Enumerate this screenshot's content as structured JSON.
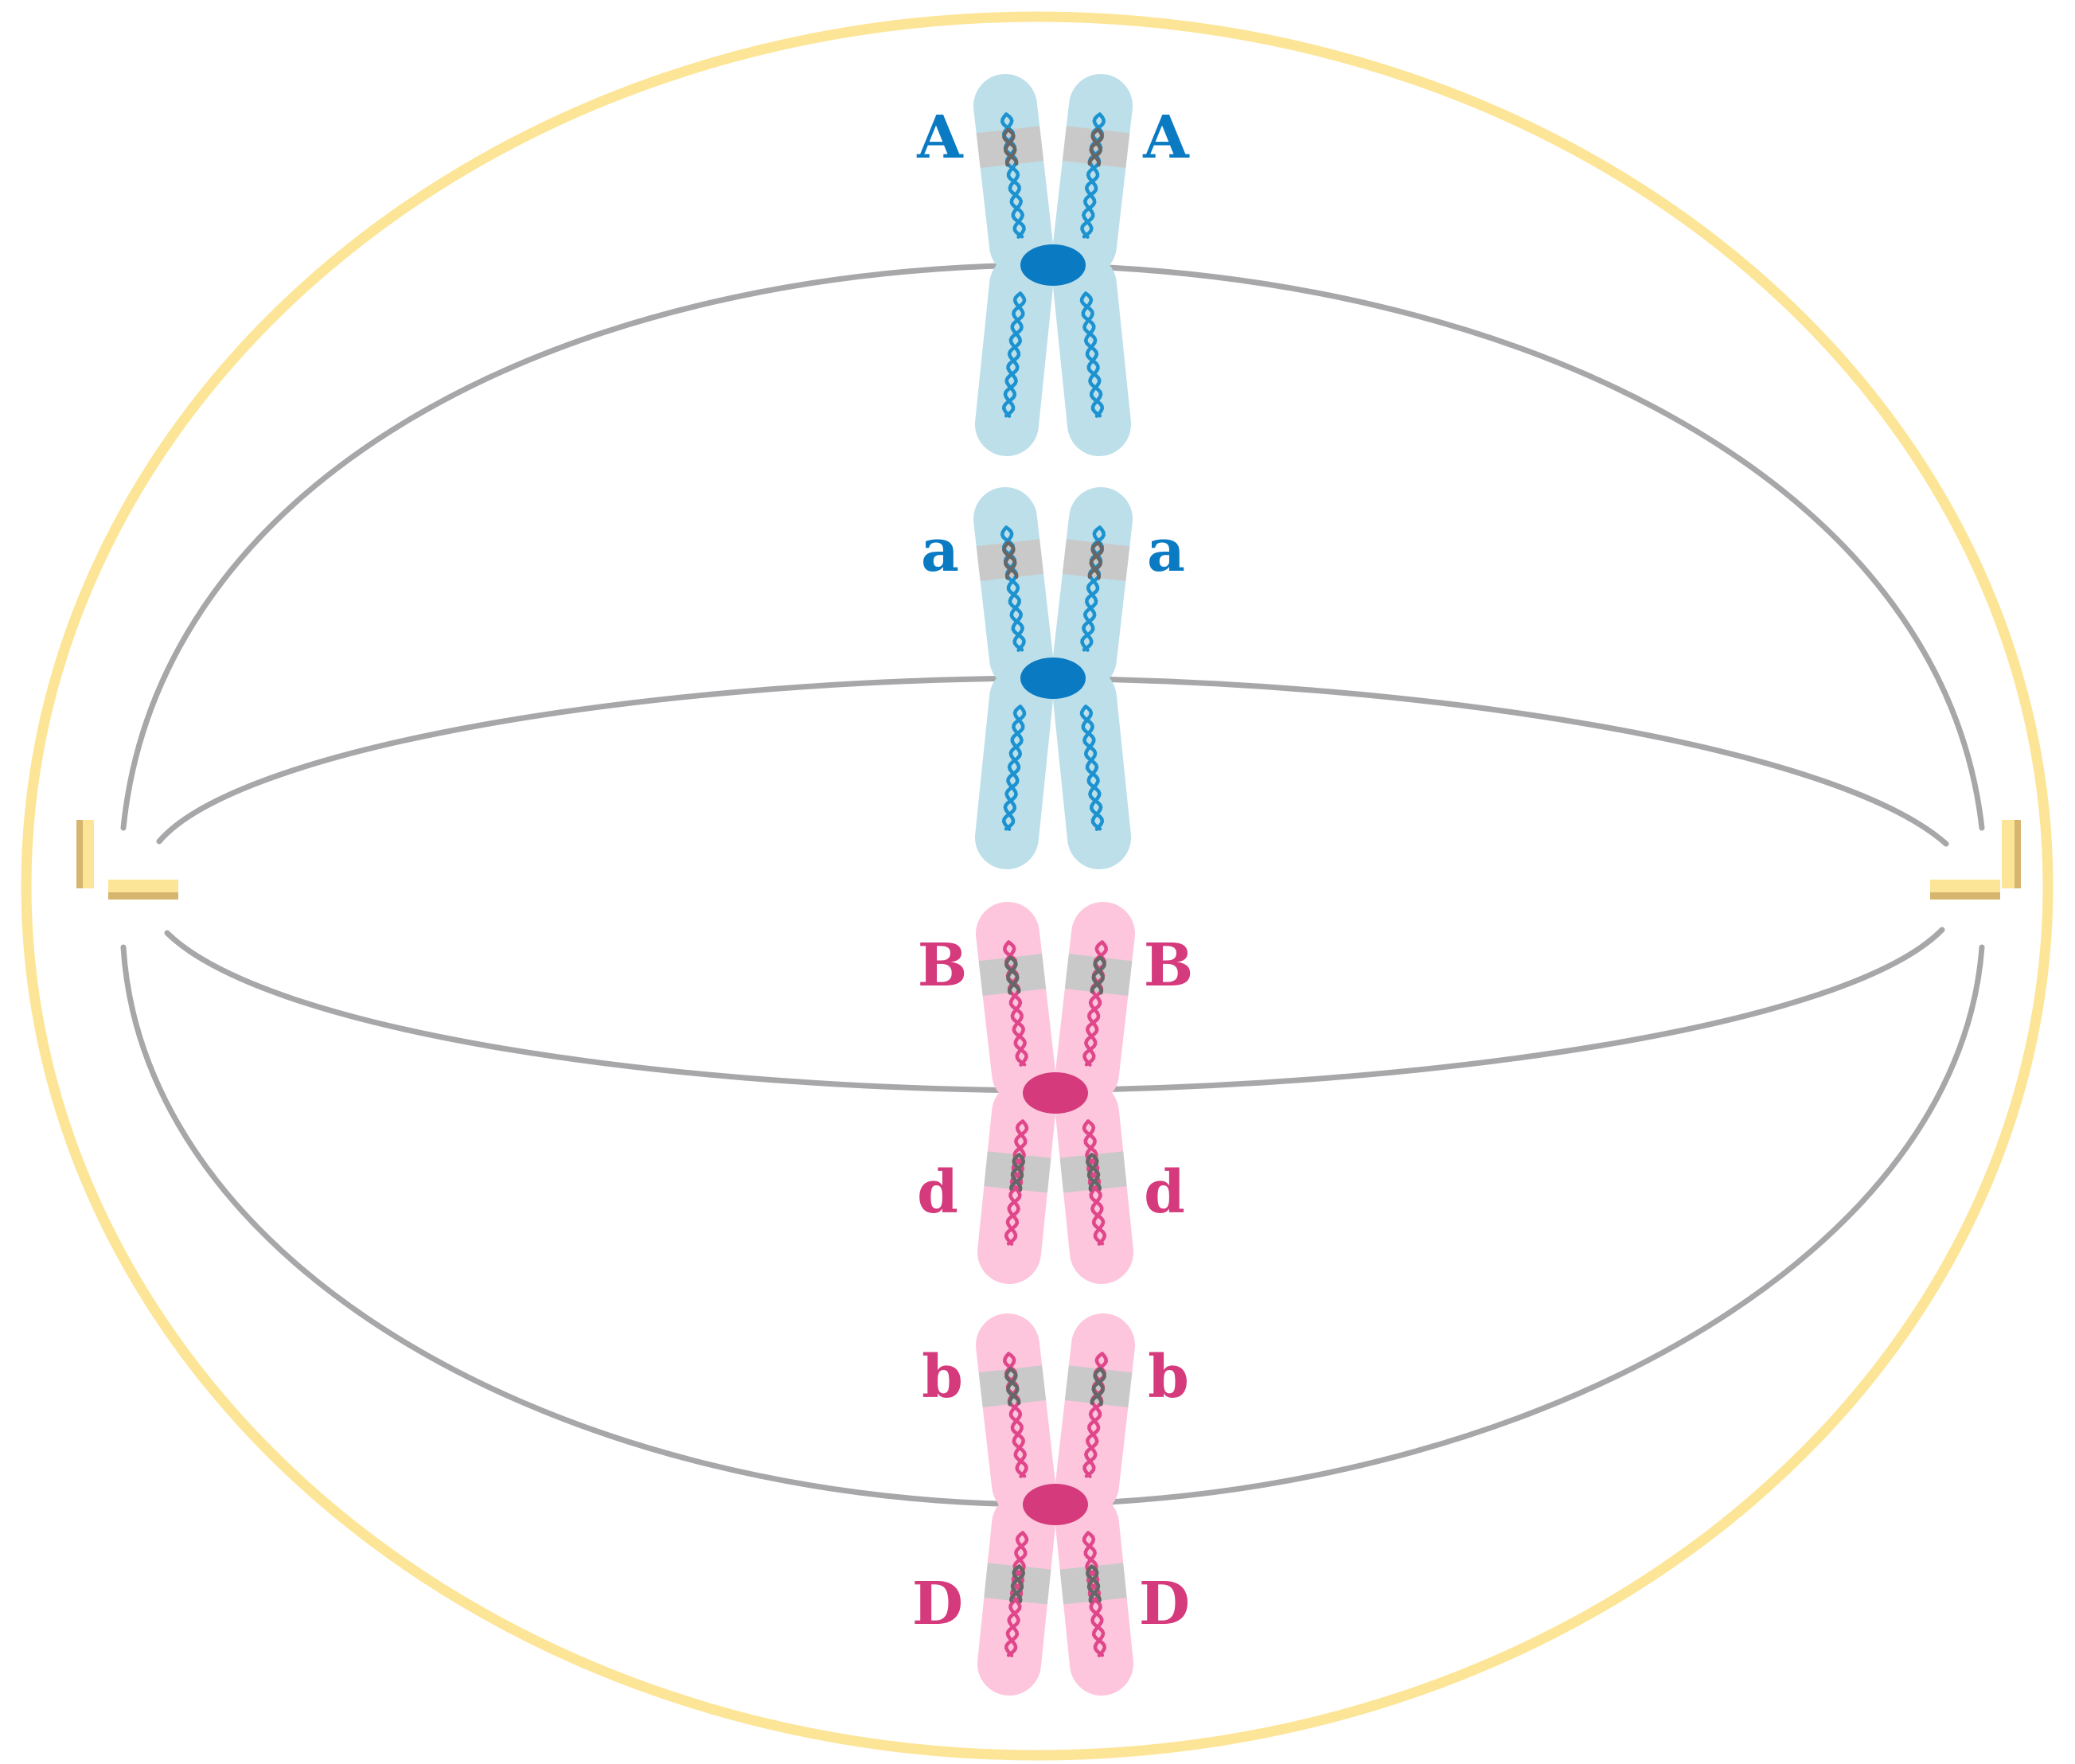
{
  "colors": {
    "cell_membrane": "#fde597",
    "spindle_fiber": "#a7a7aa",
    "centriole_light": "#fde597",
    "centriole_dark": "#d6b56e",
    "blue_chromatid_fill": "#bcdfea",
    "blue_centromere": "#0a7ac2",
    "blue_dna": "#1c93d0",
    "pink_chromatid_fill": "#fdc6dc",
    "pink_centromere": "#d43a7c",
    "pink_dna": "#e0468a",
    "gene_band": "#c9c9c9",
    "gene_band_dna": "#666666"
  },
  "chromosomes": [
    {
      "id": "chromosome-1",
      "color": "blue",
      "labels": {
        "upper_left": "A",
        "upper_right": "A",
        "lower_left": "",
        "lower_right": ""
      }
    },
    {
      "id": "chromosome-2",
      "color": "blue",
      "labels": {
        "upper_left": "a",
        "upper_right": "a",
        "lower_left": "",
        "lower_right": ""
      }
    },
    {
      "id": "chromosome-3",
      "color": "pink",
      "labels": {
        "upper_left": "B",
        "upper_right": "B",
        "lower_left": "d",
        "lower_right": "d"
      }
    },
    {
      "id": "chromosome-4",
      "color": "pink",
      "labels": {
        "upper_left": "b",
        "upper_right": "b",
        "lower_left": "D",
        "lower_right": "D"
      }
    }
  ],
  "icons": {
    "cell": "cell-membrane-icon",
    "centriole": "centriole-icon",
    "spindle": "spindle-fiber-icon",
    "chromosome": "chromosome-icon"
  }
}
